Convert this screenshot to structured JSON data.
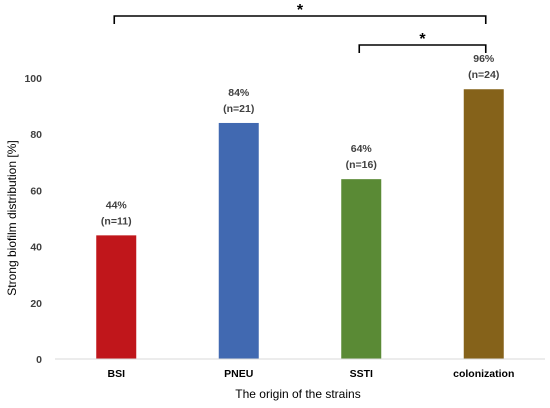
{
  "chart_data": {
    "type": "bar",
    "title": "",
    "xlabel": "The origin of the strains",
    "ylabel": "Strong biofilm distribution [%]",
    "ylim": [
      0,
      100
    ],
    "yticks": [
      0,
      20,
      40,
      60,
      80,
      100
    ],
    "grid": false,
    "legend": "none",
    "categories": [
      "BSI",
      "PNEU",
      "SSTI",
      "colonization"
    ],
    "values": [
      44,
      84,
      64,
      96
    ],
    "data_labels": [
      {
        "percent": "44%",
        "n": "(n=11)"
      },
      {
        "percent": "84%",
        "n": "(n=21)"
      },
      {
        "percent": "64%",
        "n": "(n=16)"
      },
      {
        "percent": "96%",
        "n": "(n=24)"
      }
    ],
    "colors": [
      "#c0161b",
      "#4169b1",
      "#5a8a35",
      "#85621a"
    ],
    "significance": [
      {
        "from": "BSI",
        "to": "colonization",
        "label": "*"
      },
      {
        "from": "SSTI",
        "to": "colonization",
        "label": "*"
      }
    ]
  }
}
